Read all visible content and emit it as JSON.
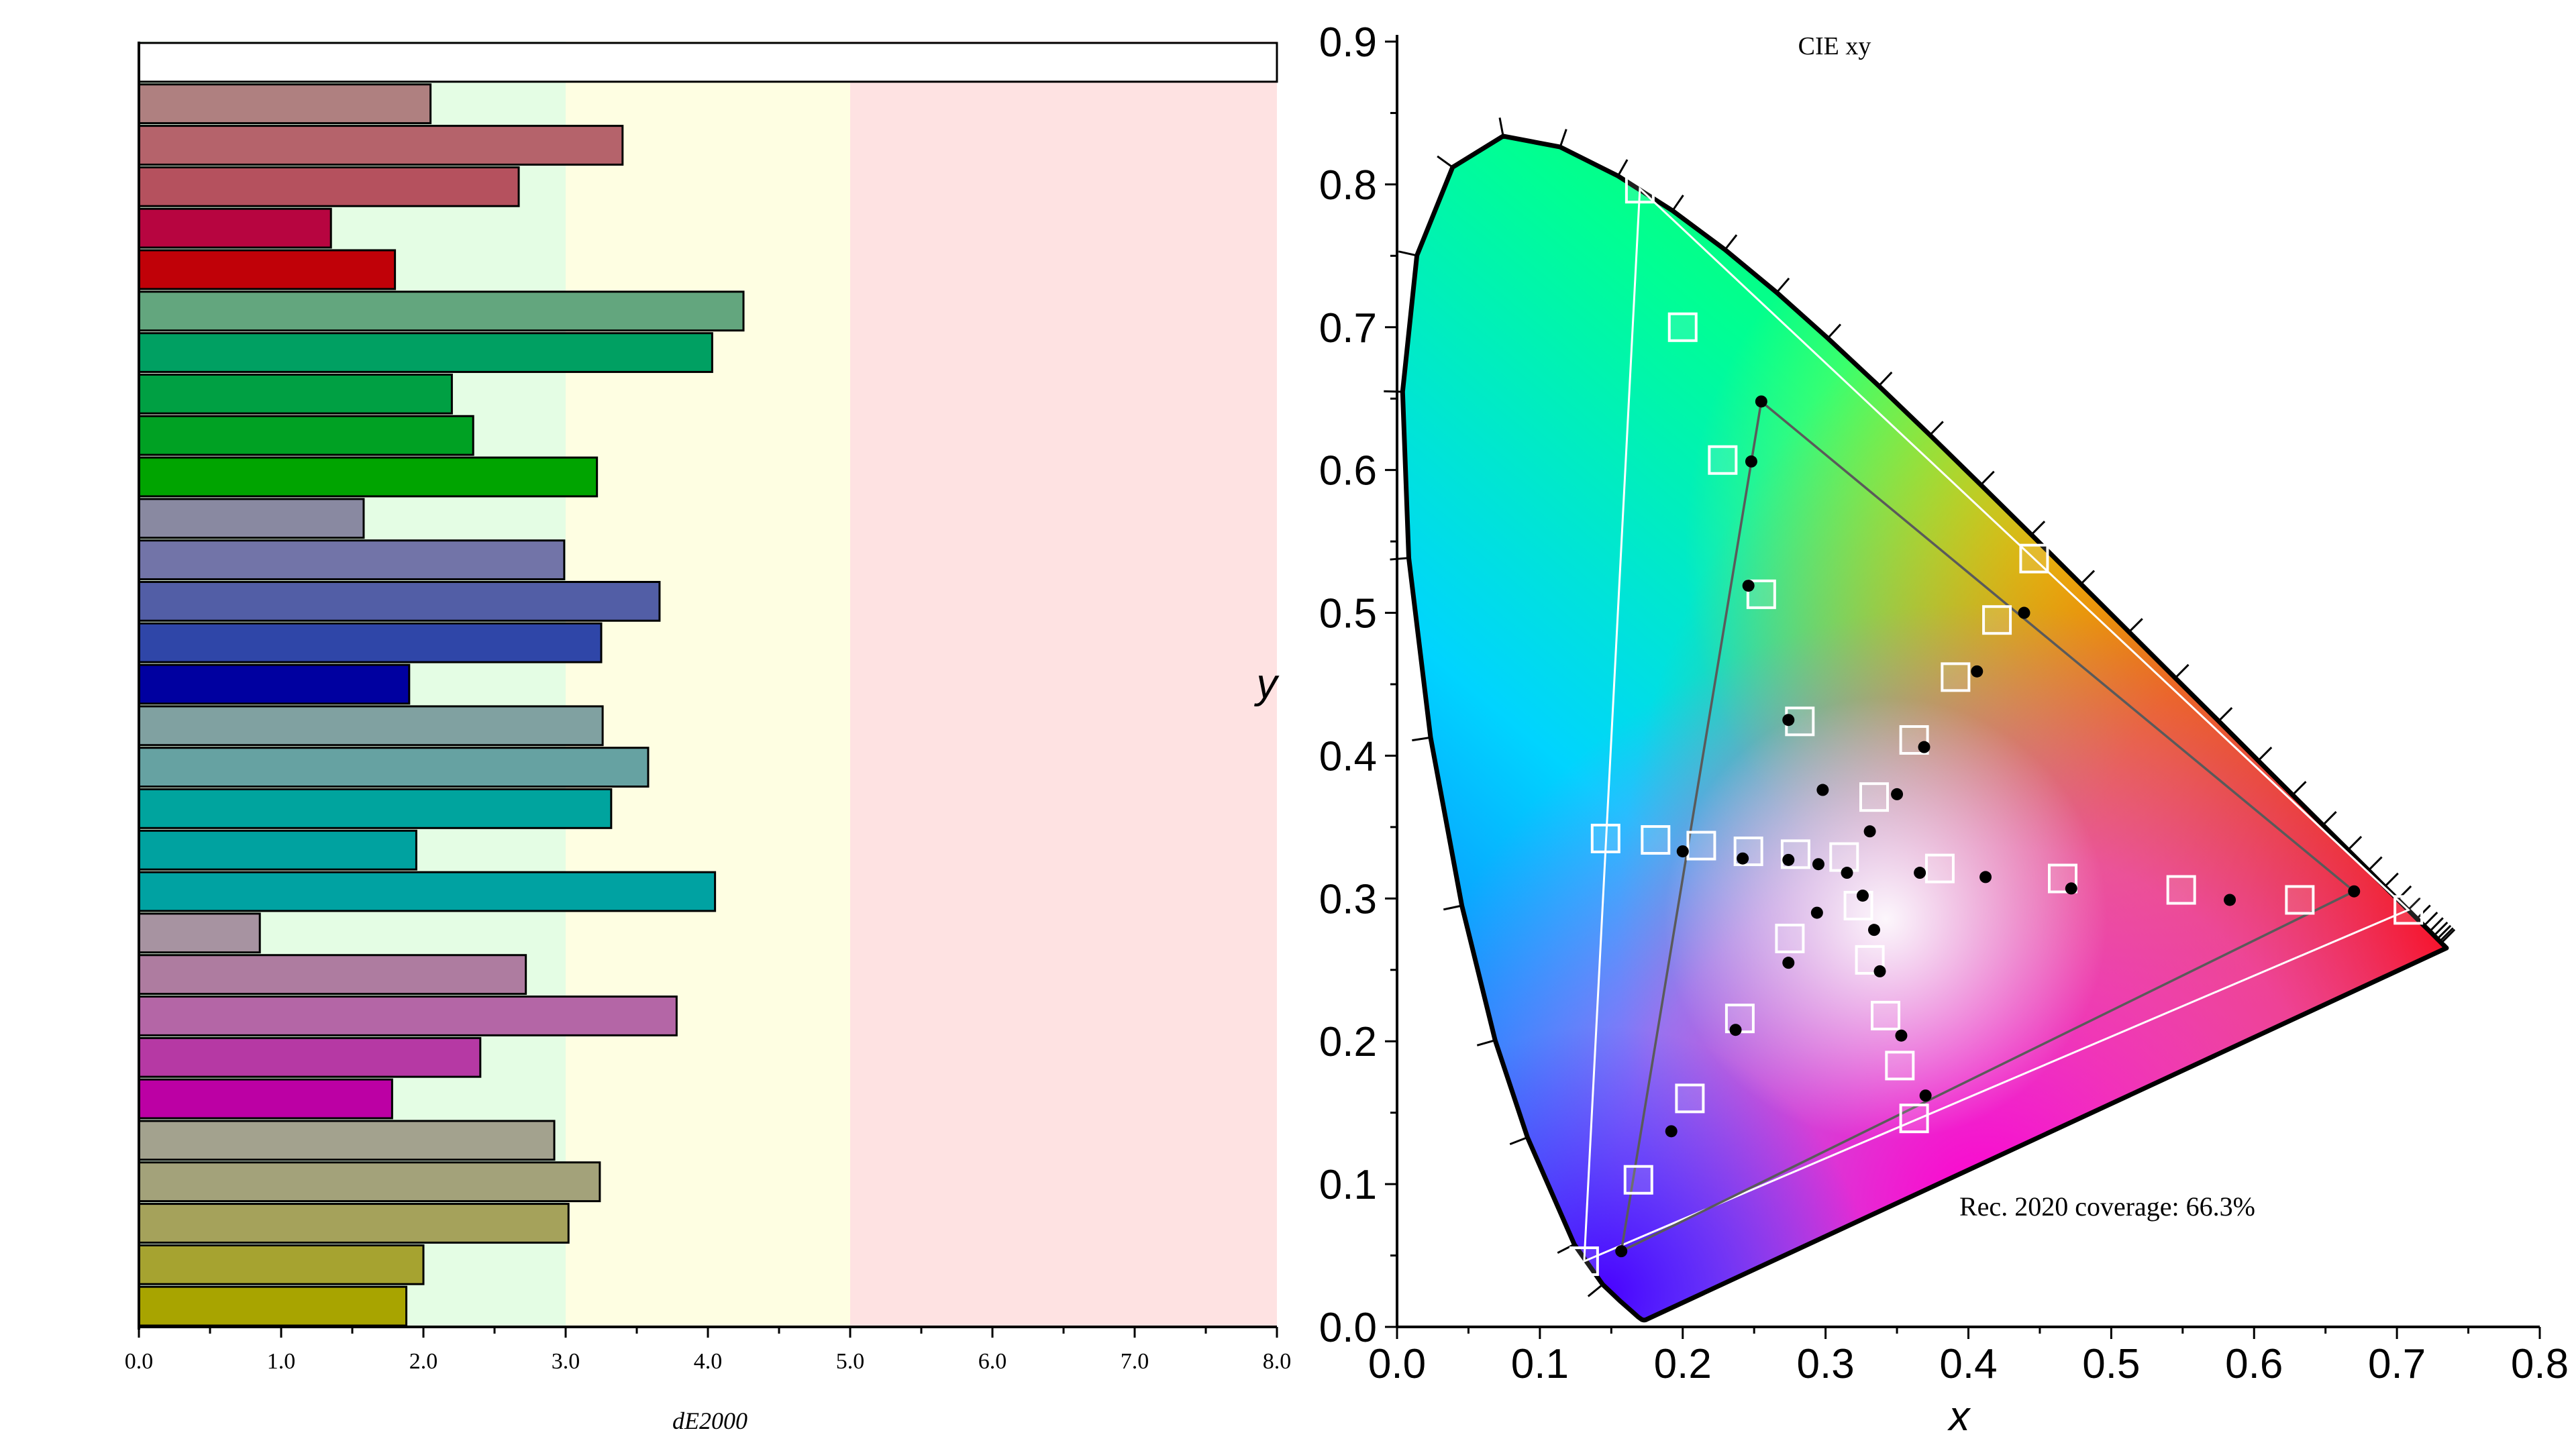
{
  "chart_data": [
    {
      "type": "bar",
      "orientation": "horizontal",
      "title": "",
      "xlabel": "dE2000",
      "ylabel": "",
      "xlim": [
        0,
        8
      ],
      "x_ticks": [
        "0.0",
        "1.0",
        "2.0",
        "3.0",
        "4.0",
        "5.0",
        "6.0",
        "7.0",
        "8.0"
      ],
      "zones": [
        {
          "from": 0,
          "to": 3,
          "color": "#e4fde4"
        },
        {
          "from": 3,
          "to": 5,
          "color": "#fefee2"
        },
        {
          "from": 5,
          "to": 8,
          "color": "#fee2e2"
        }
      ],
      "bars": [
        {
          "value": 8.0,
          "color": "#ffffff"
        },
        {
          "value": 2.05,
          "color": "#af8080"
        },
        {
          "value": 3.4,
          "color": "#b5636b"
        },
        {
          "value": 2.67,
          "color": "#b5515e"
        },
        {
          "value": 1.35,
          "color": "#b70540"
        },
        {
          "value": 1.8,
          "color": "#c00108"
        },
        {
          "value": 4.25,
          "color": "#63a67e"
        },
        {
          "value": 4.03,
          "color": "#00a062"
        },
        {
          "value": 2.2,
          "color": "#00a043"
        },
        {
          "value": 2.35,
          "color": "#00a123"
        },
        {
          "value": 3.22,
          "color": "#00a400"
        },
        {
          "value": 1.58,
          "color": "#8989a1"
        },
        {
          "value": 2.99,
          "color": "#7274a8"
        },
        {
          "value": 3.66,
          "color": "#525ea6"
        },
        {
          "value": 3.25,
          "color": "#2f46a8"
        },
        {
          "value": 1.9,
          "color": "#0000a0"
        },
        {
          "value": 3.26,
          "color": "#80a1a1"
        },
        {
          "value": 3.58,
          "color": "#66a2a2"
        },
        {
          "value": 3.32,
          "color": "#00a49e"
        },
        {
          "value": 1.95,
          "color": "#00a2a0"
        },
        {
          "value": 4.05,
          "color": "#00a2a2"
        },
        {
          "value": 0.85,
          "color": "#a793a1"
        },
        {
          "value": 2.72,
          "color": "#ae7ca0"
        },
        {
          "value": 3.78,
          "color": "#b466a6"
        },
        {
          "value": 2.4,
          "color": "#b639a4"
        },
        {
          "value": 1.78,
          "color": "#bc00a4"
        },
        {
          "value": 2.92,
          "color": "#a3a28e"
        },
        {
          "value": 3.24,
          "color": "#a3a27a"
        },
        {
          "value": 3.02,
          "color": "#a5a25b"
        },
        {
          "value": 2.0,
          "color": "#a6a330"
        },
        {
          "value": 1.88,
          "color": "#a8a400"
        }
      ]
    },
    {
      "type": "scatter",
      "title": "CIE xy",
      "xlabel": "x",
      "ylabel": "y",
      "xlim": [
        0,
        0.8
      ],
      "ylim": [
        0,
        0.9
      ],
      "x_ticks": [
        "0.0",
        "0.1",
        "0.2",
        "0.3",
        "0.4",
        "0.5",
        "0.6",
        "0.7",
        "0.8"
      ],
      "y_ticks": [
        "0.0",
        "0.1",
        "0.2",
        "0.3",
        "0.4",
        "0.5",
        "0.6",
        "0.7",
        "0.8",
        "0.9"
      ],
      "annotation": "Rec. 2020 coverage: 66.3%",
      "rec2020_triangle": [
        [
          0.708,
          0.292
        ],
        [
          0.17,
          0.797
        ],
        [
          0.131,
          0.046
        ]
      ],
      "measured_gamut": [
        [
          0.67,
          0.305
        ],
        [
          0.255,
          0.648
        ],
        [
          0.157,
          0.053
        ]
      ],
      "target_points": [
        [
          0.17,
          0.797
        ],
        [
          0.2,
          0.7
        ],
        [
          0.228,
          0.607
        ],
        [
          0.255,
          0.513
        ],
        [
          0.282,
          0.424
        ],
        [
          0.146,
          0.342
        ],
        [
          0.181,
          0.341
        ],
        [
          0.213,
          0.337
        ],
        [
          0.246,
          0.333
        ],
        [
          0.279,
          0.331
        ],
        [
          0.313,
          0.329
        ],
        [
          0.323,
          0.295
        ],
        [
          0.331,
          0.257
        ],
        [
          0.342,
          0.218
        ],
        [
          0.352,
          0.183
        ],
        [
          0.362,
          0.146
        ],
        [
          0.275,
          0.272
        ],
        [
          0.24,
          0.216
        ],
        [
          0.205,
          0.16
        ],
        [
          0.169,
          0.103
        ],
        [
          0.131,
          0.046
        ],
        [
          0.38,
          0.321
        ],
        [
          0.466,
          0.314
        ],
        [
          0.549,
          0.306
        ],
        [
          0.632,
          0.299
        ],
        [
          0.708,
          0.292
        ],
        [
          0.334,
          0.371
        ],
        [
          0.362,
          0.411
        ],
        [
          0.391,
          0.455
        ],
        [
          0.42,
          0.495
        ],
        [
          0.446,
          0.538
        ]
      ],
      "measured_points": [
        [
          0.255,
          0.648
        ],
        [
          0.248,
          0.606
        ],
        [
          0.246,
          0.519
        ],
        [
          0.274,
          0.425
        ],
        [
          0.298,
          0.376
        ],
        [
          0.2,
          0.333
        ],
        [
          0.242,
          0.328
        ],
        [
          0.274,
          0.327
        ],
        [
          0.295,
          0.324
        ],
        [
          0.315,
          0.318
        ],
        [
          0.326,
          0.302
        ],
        [
          0.334,
          0.278
        ],
        [
          0.338,
          0.249
        ],
        [
          0.353,
          0.204
        ],
        [
          0.37,
          0.162
        ],
        [
          0.192,
          0.137
        ],
        [
          0.237,
          0.208
        ],
        [
          0.274,
          0.255
        ],
        [
          0.294,
          0.29
        ],
        [
          0.331,
          0.347
        ],
        [
          0.35,
          0.373
        ],
        [
          0.369,
          0.406
        ],
        [
          0.406,
          0.459
        ],
        [
          0.439,
          0.5
        ],
        [
          0.366,
          0.318
        ],
        [
          0.412,
          0.315
        ],
        [
          0.472,
          0.307
        ],
        [
          0.583,
          0.299
        ],
        [
          0.67,
          0.305
        ],
        [
          0.157,
          0.053
        ]
      ],
      "colors": {
        "axis": "#000000",
        "target_marker": "#ffffff",
        "measured_marker": "#000000",
        "measured_gamut_line": "#5a5a5a",
        "rec2020_line": "#ffffff"
      }
    }
  ]
}
